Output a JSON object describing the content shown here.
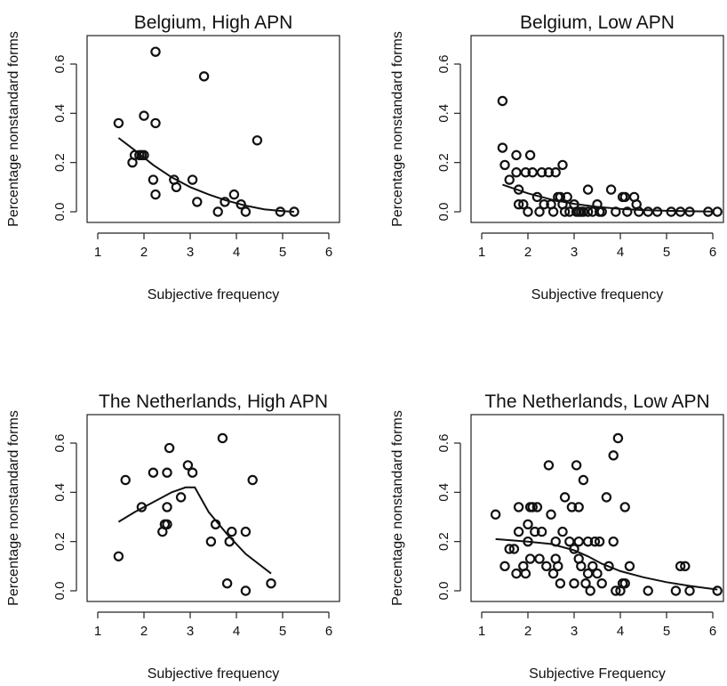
{
  "chart_data": [
    {
      "type": "scatter",
      "title": "Belgium, High APN",
      "xlabel": "Subjective frequency",
      "ylabel": "Percentage nonstandard forms",
      "xlim": [
        1,
        6
      ],
      "ylim": [
        0,
        0.6
      ],
      "xticks": [
        "1",
        "2",
        "3",
        "4",
        "5",
        "6"
      ],
      "yticks": [
        "0.0",
        "0.2",
        "0.4",
        "0.6"
      ],
      "points": [
        [
          1.45,
          0.36
        ],
        [
          1.75,
          0.2
        ],
        [
          1.8,
          0.23
        ],
        [
          1.9,
          0.23
        ],
        [
          1.95,
          0.23
        ],
        [
          2.0,
          0.23
        ],
        [
          2.0,
          0.39
        ],
        [
          2.2,
          0.13
        ],
        [
          2.25,
          0.65
        ],
        [
          2.25,
          0.36
        ],
        [
          2.25,
          0.07
        ],
        [
          2.65,
          0.13
        ],
        [
          2.7,
          0.1
        ],
        [
          3.05,
          0.13
        ],
        [
          3.15,
          0.04
        ],
        [
          3.3,
          0.55
        ],
        [
          3.6,
          0.0
        ],
        [
          3.75,
          0.04
        ],
        [
          3.95,
          0.07
        ],
        [
          4.1,
          0.03
        ],
        [
          4.2,
          0.0
        ],
        [
          4.45,
          0.29
        ],
        [
          4.95,
          0.0
        ],
        [
          5.25,
          0.0
        ]
      ],
      "fit": [
        [
          1.45,
          0.3
        ],
        [
          1.8,
          0.25
        ],
        [
          2.2,
          0.19
        ],
        [
          2.6,
          0.14
        ],
        [
          3.0,
          0.1
        ],
        [
          3.4,
          0.07
        ],
        [
          3.8,
          0.045
        ],
        [
          4.2,
          0.025
        ],
        [
          4.6,
          0.01
        ],
        [
          5.0,
          0.003
        ],
        [
          5.25,
          0.0
        ]
      ]
    },
    {
      "type": "scatter",
      "title": "Belgium, Low APN",
      "xlabel": "Subjective frequency",
      "ylabel": "Percentage nonstandard forms",
      "xlim": [
        1,
        6
      ],
      "ylim": [
        0,
        0.6
      ],
      "xticks": [
        "1",
        "2",
        "3",
        "4",
        "5",
        "6"
      ],
      "yticks": [
        "0.0",
        "0.2",
        "0.4",
        "0.6"
      ],
      "points": [
        [
          1.45,
          0.45
        ],
        [
          1.45,
          0.26
        ],
        [
          1.5,
          0.19
        ],
        [
          1.6,
          0.13
        ],
        [
          1.75,
          0.23
        ],
        [
          1.75,
          0.16
        ],
        [
          1.8,
          0.09
        ],
        [
          1.8,
          0.03
        ],
        [
          1.9,
          0.03
        ],
        [
          1.95,
          0.16
        ],
        [
          2.0,
          0.0
        ],
        [
          2.05,
          0.23
        ],
        [
          2.1,
          0.16
        ],
        [
          2.2,
          0.06
        ],
        [
          2.25,
          0.0
        ],
        [
          2.3,
          0.16
        ],
        [
          2.35,
          0.03
        ],
        [
          2.45,
          0.16
        ],
        [
          2.5,
          0.03
        ],
        [
          2.55,
          0.0
        ],
        [
          2.6,
          0.16
        ],
        [
          2.65,
          0.06
        ],
        [
          2.7,
          0.06
        ],
        [
          2.75,
          0.19
        ],
        [
          2.75,
          0.03
        ],
        [
          2.8,
          0.0
        ],
        [
          2.85,
          0.06
        ],
        [
          2.9,
          0.0
        ],
        [
          3.0,
          0.03
        ],
        [
          3.05,
          0.0
        ],
        [
          3.1,
          0.0
        ],
        [
          3.15,
          0.0
        ],
        [
          3.2,
          0.0
        ],
        [
          3.3,
          0.09
        ],
        [
          3.3,
          0.0
        ],
        [
          3.4,
          0.0
        ],
        [
          3.5,
          0.03
        ],
        [
          3.55,
          0.0
        ],
        [
          3.6,
          0.0
        ],
        [
          3.8,
          0.09
        ],
        [
          3.9,
          0.0
        ],
        [
          4.05,
          0.06
        ],
        [
          4.1,
          0.06
        ],
        [
          4.15,
          0.0
        ],
        [
          4.3,
          0.06
        ],
        [
          4.35,
          0.03
        ],
        [
          4.4,
          0.0
        ],
        [
          4.6,
          0.0
        ],
        [
          4.8,
          0.0
        ],
        [
          5.1,
          0.0
        ],
        [
          5.3,
          0.0
        ],
        [
          5.5,
          0.0
        ],
        [
          5.9,
          0.0
        ],
        [
          6.1,
          0.0
        ]
      ],
      "fit": [
        [
          1.45,
          0.11
        ],
        [
          2.0,
          0.075
        ],
        [
          2.5,
          0.05
        ],
        [
          3.0,
          0.032
        ],
        [
          3.5,
          0.02
        ],
        [
          4.0,
          0.012
        ],
        [
          4.5,
          0.007
        ],
        [
          5.0,
          0.004
        ],
        [
          5.5,
          0.002
        ],
        [
          6.0,
          0.001
        ]
      ]
    },
    {
      "type": "scatter",
      "title": "The Netherlands, High APN",
      "xlabel": "Subjective frequency",
      "ylabel": "Percentage nonstandard forms",
      "xlim": [
        1,
        6
      ],
      "ylim": [
        0,
        0.6
      ],
      "xticks": [
        "1",
        "2",
        "3",
        "4",
        "5",
        "6"
      ],
      "yticks": [
        "0.0",
        "0.2",
        "0.4",
        "0.6"
      ],
      "points": [
        [
          1.45,
          0.14
        ],
        [
          1.6,
          0.45
        ],
        [
          1.95,
          0.34
        ],
        [
          2.2,
          0.48
        ],
        [
          2.4,
          0.24
        ],
        [
          2.45,
          0.27
        ],
        [
          2.5,
          0.27
        ],
        [
          2.5,
          0.48
        ],
        [
          2.5,
          0.34
        ],
        [
          2.55,
          0.58
        ],
        [
          2.8,
          0.38
        ],
        [
          2.95,
          0.51
        ],
        [
          3.05,
          0.48
        ],
        [
          3.45,
          0.2
        ],
        [
          3.55,
          0.27
        ],
        [
          3.7,
          0.62
        ],
        [
          3.8,
          0.03
        ],
        [
          3.85,
          0.2
        ],
        [
          3.9,
          0.24
        ],
        [
          4.2,
          0.0
        ],
        [
          4.2,
          0.24
        ],
        [
          4.35,
          0.45
        ],
        [
          4.75,
          0.03
        ]
      ],
      "fit": [
        [
          1.45,
          0.28
        ],
        [
          1.8,
          0.32
        ],
        [
          2.2,
          0.36
        ],
        [
          2.6,
          0.4
        ],
        [
          2.9,
          0.42
        ],
        [
          3.1,
          0.42
        ],
        [
          3.4,
          0.32
        ],
        [
          3.8,
          0.23
        ],
        [
          4.2,
          0.15
        ],
        [
          4.75,
          0.07
        ]
      ]
    },
    {
      "type": "scatter",
      "title": "The Netherlands, Low APN",
      "xlabel": "Subjective Frequency",
      "ylabel": "Percentage nonstandard forms",
      "xlim": [
        1,
        6
      ],
      "ylim": [
        0,
        0.6
      ],
      "xticks": [
        "1",
        "2",
        "3",
        "4",
        "5",
        "6"
      ],
      "yticks": [
        "0.0",
        "0.2",
        "0.4",
        "0.6"
      ],
      "points": [
        [
          1.3,
          0.31
        ],
        [
          1.5,
          0.1
        ],
        [
          1.6,
          0.17
        ],
        [
          1.7,
          0.17
        ],
        [
          1.75,
          0.07
        ],
        [
          1.8,
          0.34
        ],
        [
          1.8,
          0.24
        ],
        [
          1.9,
          0.1
        ],
        [
          1.95,
          0.07
        ],
        [
          2.0,
          0.27
        ],
        [
          2.0,
          0.2
        ],
        [
          2.05,
          0.34
        ],
        [
          2.05,
          0.13
        ],
        [
          2.1,
          0.34
        ],
        [
          2.15,
          0.24
        ],
        [
          2.2,
          0.34
        ],
        [
          2.25,
          0.13
        ],
        [
          2.3,
          0.24
        ],
        [
          2.4,
          0.1
        ],
        [
          2.45,
          0.51
        ],
        [
          2.5,
          0.31
        ],
        [
          2.55,
          0.07
        ],
        [
          2.6,
          0.2
        ],
        [
          2.6,
          0.13
        ],
        [
          2.65,
          0.1
        ],
        [
          2.7,
          0.03
        ],
        [
          2.75,
          0.24
        ],
        [
          2.8,
          0.38
        ],
        [
          2.9,
          0.2
        ],
        [
          2.95,
          0.34
        ],
        [
          3.0,
          0.17
        ],
        [
          3.0,
          0.03
        ],
        [
          3.05,
          0.51
        ],
        [
          3.1,
          0.2
        ],
        [
          3.1,
          0.13
        ],
        [
          3.1,
          0.34
        ],
        [
          3.15,
          0.1
        ],
        [
          3.2,
          0.45
        ],
        [
          3.25,
          0.03
        ],
        [
          3.3,
          0.2
        ],
        [
          3.3,
          0.07
        ],
        [
          3.35,
          0.0
        ],
        [
          3.4,
          0.1
        ],
        [
          3.45,
          0.2
        ],
        [
          3.5,
          0.07
        ],
        [
          3.55,
          0.2
        ],
        [
          3.6,
          0.03
        ],
        [
          3.7,
          0.38
        ],
        [
          3.75,
          0.1
        ],
        [
          3.85,
          0.2
        ],
        [
          3.85,
          0.55
        ],
        [
          3.9,
          0.0
        ],
        [
          3.95,
          0.62
        ],
        [
          4.0,
          0.0
        ],
        [
          4.05,
          0.03
        ],
        [
          4.1,
          0.34
        ],
        [
          4.1,
          0.03
        ],
        [
          4.2,
          0.1
        ],
        [
          4.6,
          0.0
        ],
        [
          5.2,
          0.0
        ],
        [
          5.3,
          0.1
        ],
        [
          5.4,
          0.1
        ],
        [
          5.5,
          0.0
        ],
        [
          6.1,
          0.0
        ]
      ],
      "fit": [
        [
          1.3,
          0.21
        ],
        [
          2.0,
          0.2
        ],
        [
          2.5,
          0.19
        ],
        [
          3.0,
          0.165
        ],
        [
          3.3,
          0.14
        ],
        [
          3.6,
          0.11
        ],
        [
          4.0,
          0.08
        ],
        [
          4.5,
          0.055
        ],
        [
          5.0,
          0.035
        ],
        [
          5.5,
          0.02
        ],
        [
          6.1,
          0.005
        ]
      ]
    }
  ]
}
